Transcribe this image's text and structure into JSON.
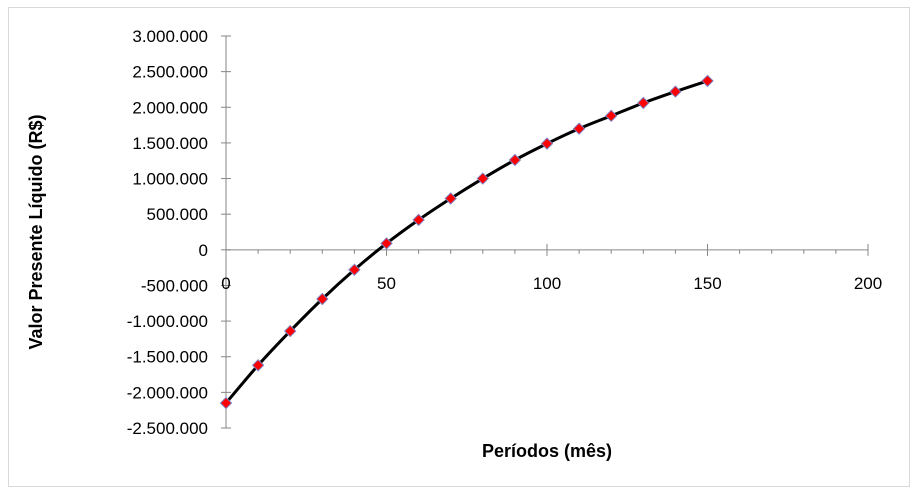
{
  "chart_data": {
    "type": "scatter",
    "title": "",
    "xlabel": "Períodos (mês)",
    "ylabel": "Valor Presente Líquido (R$)",
    "xlim": [
      0,
      200
    ],
    "ylim": [
      -2500000,
      3000000
    ],
    "x_ticks": [
      0,
      50,
      100,
      150,
      200
    ],
    "x_tick_labels": [
      "0",
      "50",
      "100",
      "150",
      "200"
    ],
    "x_minor_step": 10,
    "y_ticks": [
      3000000,
      2500000,
      2000000,
      1500000,
      1000000,
      500000,
      0,
      -500000,
      -1000000,
      -1500000,
      -2000000,
      -2500000
    ],
    "y_tick_labels": [
      "3.000.000",
      "2.500.000",
      "2.000.000",
      "1.500.000",
      "1.000.000",
      "500.000",
      "0",
      "-500.000",
      "-1.000.000",
      "-1.500.000",
      "-2.000.000",
      "-2.500.000"
    ],
    "grid": false,
    "legend": "none",
    "series": [
      {
        "x": [
          0,
          10,
          20,
          30,
          40,
          50,
          60,
          70,
          80,
          90,
          100,
          110,
          120,
          130,
          140,
          150
        ],
        "y": [
          -2150000,
          -1620000,
          -1140000,
          -690000,
          -280000,
          90000,
          420000,
          720000,
          1000000,
          1260000,
          1490000,
          1700000,
          1880000,
          2060000,
          2220000,
          2370000
        ],
        "line_color": "#000000",
        "marker": "diamond",
        "marker_color": "#ff0000",
        "marker_edge_color": "#7f7fbf",
        "smooth": true
      }
    ]
  }
}
